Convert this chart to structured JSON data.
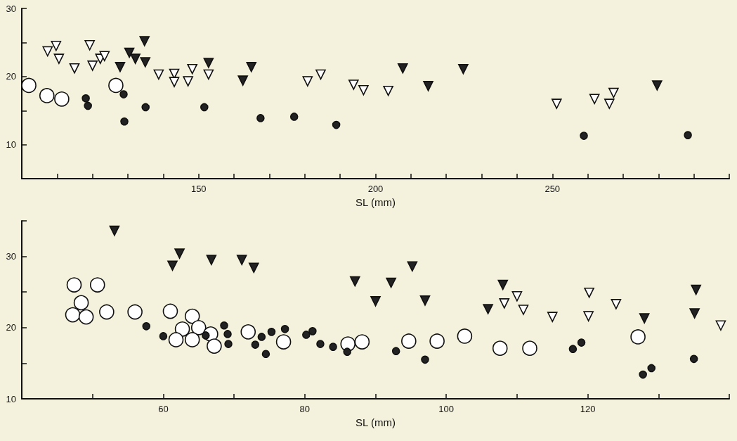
{
  "chart_data": [
    {
      "type": "scatter",
      "xlabel": "SL (mm)",
      "xlim": [
        100,
        300
      ],
      "xticks": [
        {
          "value": 110,
          "label": null
        },
        {
          "value": 120,
          "label": null
        },
        {
          "value": 130,
          "label": null
        },
        {
          "value": 140,
          "label": null
        },
        150,
        {
          "value": 160,
          "label": null
        },
        {
          "value": 170,
          "label": null
        },
        {
          "value": 180,
          "label": null
        },
        {
          "value": 190,
          "label": null
        },
        200,
        {
          "value": 210,
          "label": null
        },
        {
          "value": 220,
          "label": null
        },
        {
          "value": 230,
          "label": null
        },
        {
          "value": 240,
          "label": null
        },
        250,
        {
          "value": 260,
          "label": null
        },
        {
          "value": 270,
          "label": null
        },
        {
          "value": 280,
          "label": null
        },
        {
          "value": 290,
          "label": null
        },
        {
          "value": 300,
          "label": null
        }
      ],
      "ylim": [
        5,
        30
      ],
      "yticks": [
        10,
        {
          "value": 15,
          "label": null
        },
        20,
        {
          "value": 25,
          "label": null
        },
        30
      ],
      "series": [
        {
          "color": "#ffffff",
          "marker": "circle",
          "x": [
            102.0,
            107.1,
            111.3,
            126.6
          ],
          "values": [
            18.7,
            17.2,
            16.7,
            18.7
          ]
        },
        {
          "color": "#222222",
          "marker": "circle",
          "x": [
            118.1,
            118.7,
            128.8,
            129.0,
            135.0,
            151.6,
            167.5,
            177.0,
            188.9,
            258.9,
            288.3
          ],
          "values": [
            16.8,
            15.7,
            17.4,
            13.4,
            15.5,
            15.5,
            13.9,
            14.1,
            12.9,
            11.3,
            11.4
          ]
        },
        {
          "color": "#ffffff",
          "marker": "triangle",
          "x": [
            107.3,
            109.7,
            110.5,
            114.9,
            119.2,
            120.0,
            122.2,
            123.4,
            138.7,
            143.1,
            143.1,
            147.0,
            148.2,
            152.8,
            180.8,
            184.5,
            193.8,
            196.6,
            203.6,
            251.2,
            261.9,
            266.1,
            267.3
          ],
          "values": [
            23.7,
            24.5,
            22.6,
            21.2,
            24.6,
            21.6,
            22.6,
            23.0,
            20.3,
            20.4,
            19.2,
            19.3,
            21.1,
            20.3,
            19.3,
            20.3,
            18.8,
            18.0,
            17.9,
            16.0,
            16.7,
            16.0,
            17.6
          ]
        },
        {
          "color": "#222222",
          "marker": "triangle",
          "x": [
            127.8,
            130.4,
            132.1,
            134.7,
            134.9,
            152.8,
            162.5,
            164.9,
            207.7,
            214.9,
            224.8,
            279.6
          ],
          "values": [
            21.4,
            23.5,
            22.6,
            25.2,
            22.1,
            22.0,
            19.4,
            21.4,
            21.2,
            18.6,
            21.1,
            18.7
          ]
        }
      ]
    },
    {
      "type": "scatter",
      "xlabel": "SL (mm)",
      "xlim": [
        40,
        140
      ],
      "xticks": [
        {
          "value": 50,
          "label": null
        },
        60,
        {
          "value": 70,
          "label": null
        },
        80,
        {
          "value": 90,
          "label": null
        },
        100,
        {
          "value": 110,
          "label": null
        },
        120,
        {
          "value": 130,
          "label": null
        },
        {
          "value": 140,
          "label": null
        }
      ],
      "ylim": [
        10,
        35
      ],
      "yticks": [
        10,
        {
          "value": 15,
          "label": null
        },
        20,
        {
          "value": 25,
          "label": null
        },
        30,
        {
          "value": 35,
          "label": null
        }
      ],
      "series": [
        {
          "color": "#ffffff",
          "marker": "circle",
          "x": [
            47.4,
            50.7,
            48.4,
            47.2,
            49.1,
            52.0,
            56.0,
            61.0,
            64.1,
            62.7,
            65.0,
            66.7,
            61.8,
            64.1,
            67.2,
            72.0,
            77.0,
            86.1,
            88.1,
            94.7,
            98.7,
            102.6,
            107.6,
            111.8,
            127.1
          ],
          "values": [
            26.0,
            26.0,
            23.5,
            21.8,
            21.5,
            22.2,
            22.2,
            22.3,
            21.6,
            19.8,
            20.0,
            19.1,
            18.3,
            18.3,
            17.4,
            19.4,
            18.0,
            17.7,
            18.0,
            18.1,
            18.1,
            18.8,
            17.1,
            17.1,
            18.7
          ]
        },
        {
          "color": "#222222",
          "marker": "circle",
          "x": [
            57.6,
            60.0,
            66.0,
            68.6,
            69.1,
            69.2,
            73.0,
            73.9,
            74.5,
            75.3,
            77.2,
            80.2,
            81.1,
            82.2,
            84.0,
            86.0,
            92.9,
            97.0,
            117.9,
            119.1,
            127.8,
            129.0,
            135.0
          ],
          "values": [
            20.2,
            18.8,
            18.9,
            20.3,
            19.1,
            17.7,
            17.6,
            18.7,
            16.3,
            19.4,
            19.8,
            19.0,
            19.5,
            17.7,
            17.3,
            16.6,
            16.7,
            15.5,
            17.0,
            17.9,
            13.4,
            14.3,
            15.6
          ]
        },
        {
          "color": "#ffffff",
          "marker": "triangle",
          "x": [
            108.2,
            110.0,
            110.9,
            115.0,
            120.2,
            120.1,
            124.0,
            138.8
          ],
          "values": [
            23.4,
            24.4,
            22.5,
            21.5,
            24.9,
            21.6,
            23.3,
            20.3
          ]
        },
        {
          "color": "#222222",
          "marker": "triangle",
          "x": [
            53.1,
            61.3,
            62.3,
            66.8,
            71.1,
            72.8,
            87.1,
            90.0,
            92.2,
            95.2,
            97.0,
            105.9,
            108.0,
            128.0,
            135.3,
            135.1
          ],
          "values": [
            33.6,
            28.7,
            30.4,
            29.5,
            29.5,
            28.4,
            26.5,
            23.7,
            26.3,
            28.6,
            23.8,
            22.6,
            26.0,
            21.3,
            25.3,
            22.0
          ]
        }
      ]
    }
  ]
}
